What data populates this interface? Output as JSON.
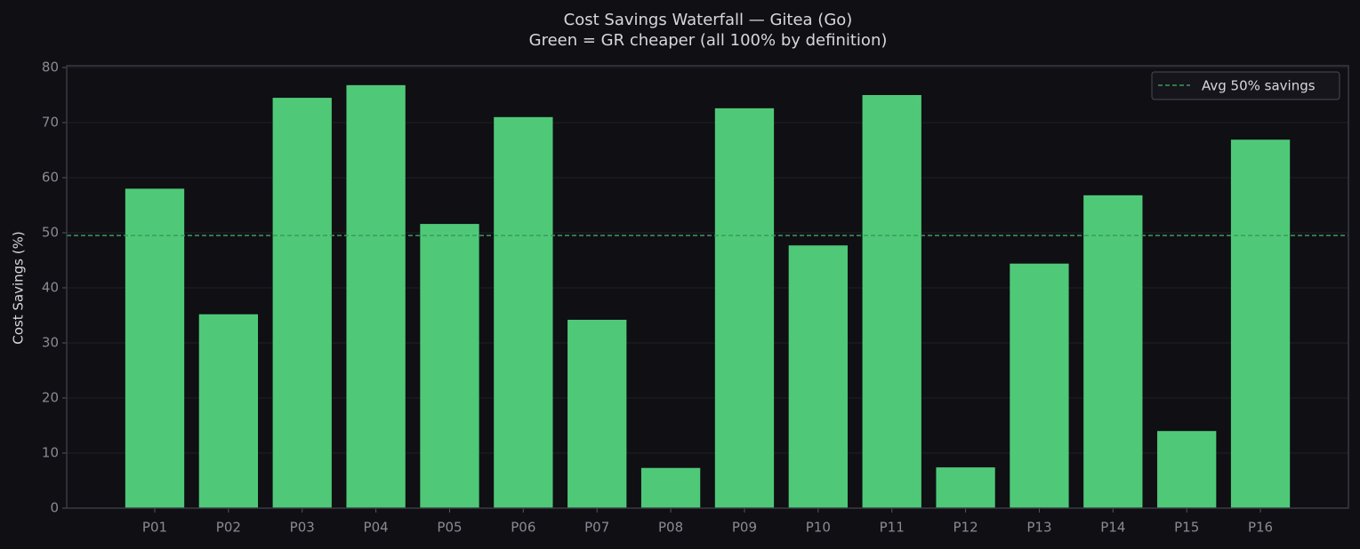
{
  "chart_data": {
    "type": "bar",
    "title": "Cost Savings Waterfall — Gitea (Go)",
    "subtitle": "Green = GR cheaper (all 100% by definition)",
    "y_label": "Cost Savings (%)",
    "categories": [
      "P01",
      "P02",
      "P03",
      "P04",
      "P05",
      "P06",
      "P07",
      "P08",
      "P09",
      "P10",
      "P11",
      "P12",
      "P13",
      "P14",
      "P15",
      "P16"
    ],
    "values": [
      58,
      35.2,
      74.5,
      76.8,
      51.6,
      71,
      34.2,
      7.3,
      72.6,
      47.7,
      75,
      7.4,
      44.4,
      56.8,
      14,
      66.9
    ],
    "color": "#4fc978",
    "ylim": [
      0,
      80
    ],
    "yticks": [
      0,
      10,
      20,
      30,
      40,
      50,
      60,
      70,
      80
    ],
    "grid": true,
    "reference_line": {
      "value": 49.5,
      "label": "Avg 50% savings",
      "color": "#3d9a5e"
    },
    "legend": "upper right"
  }
}
